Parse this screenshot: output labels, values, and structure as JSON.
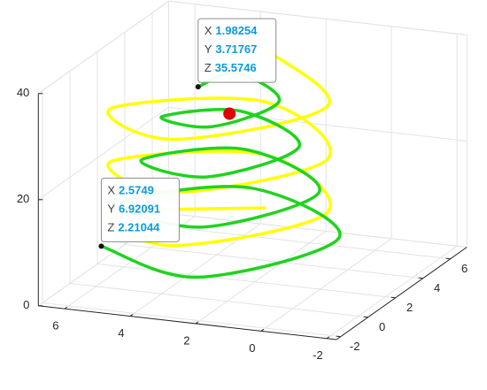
{
  "chart_data": {
    "type": "line3d",
    "xlim": [
      -2.3,
      7.2
    ],
    "ylim": [
      -2.3,
      6.8
    ],
    "zlim": [
      0,
      40
    ],
    "xticks": [
      -2,
      0,
      2,
      4,
      6
    ],
    "yticks": [
      -2,
      0,
      2,
      4,
      6
    ],
    "zticks": [
      0,
      20,
      40
    ],
    "grid": true,
    "series": [
      {
        "color": "#ffff00",
        "x": [
          6.3,
          3.0,
          -0.3,
          3.0,
          6.3,
          3.0,
          -0.3,
          3.0,
          6.3,
          3.0,
          -0.3,
          3.0,
          6.3
        ],
        "y": [
          3.5,
          6.8,
          3.5,
          0.2,
          3.5,
          6.8,
          3.5,
          0.2,
          3.5,
          6.8,
          3.5,
          0.2,
          3.5
        ],
        "z": [
          5,
          7.5,
          10,
          12.5,
          15,
          17.5,
          20,
          22.5,
          25,
          27.5,
          30,
          32.5,
          35
        ]
      },
      {
        "color": "#1fd31f",
        "x": [
          2.5749,
          -0.18,
          3.77,
          6.3,
          2.68,
          0.39,
          3.67,
          5.73,
          2.78,
          0.96,
          3.57,
          5.16,
          2.88,
          1.53,
          3.47,
          4.58,
          1.98254
        ],
        "y": [
          6.92091,
          2.8,
          0.16,
          3.95,
          6.36,
          2.9,
          0.73,
          3.85,
          5.78,
          3.0,
          1.3,
          3.75,
          5.21,
          3.11,
          1.87,
          3.64,
          3.71767
        ],
        "z": [
          2.21044,
          4.3,
          6.38,
          8.47,
          10.55,
          12.64,
          14.72,
          16.81,
          18.89,
          20.98,
          23.06,
          25.15,
          27.23,
          29.32,
          31.4,
          33.49,
          35.5746
        ]
      },
      {
        "color": "#e00000",
        "mode": "marker",
        "x": [
          1.6
        ],
        "y": [
          2.6
        ],
        "z": [
          32
        ]
      }
    ],
    "datatip_labels": [
      "X",
      "Y",
      "Z"
    ],
    "datatips": [
      {
        "x": 2.5749,
        "y": 6.92091,
        "z": 2.21044
      },
      {
        "x": 1.98254,
        "y": 3.71767,
        "z": 35.5746
      }
    ]
  }
}
